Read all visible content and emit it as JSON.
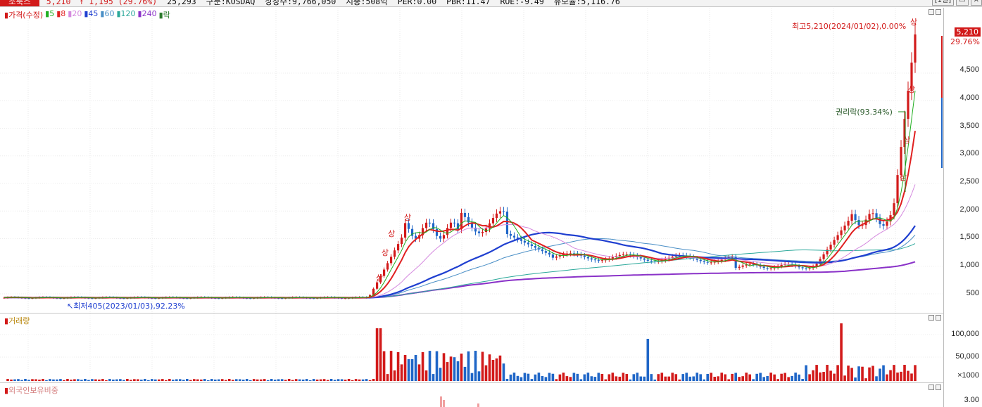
{
  "header": {
    "stock_name": "소룩스",
    "price": "5,210",
    "change": "↑ 1,195 (29.76%)",
    "volume": "25,293",
    "stats": [
      "구분:KOSDAQ",
      "상장수:9,766,050",
      "시총:508억",
      "PER:0.00",
      "PBR:11.47",
      "ROE:-9.49",
      "유보율:5,116.76"
    ],
    "period_button": "[1일]",
    "buttons": [
      "restore-icon",
      "close-icon"
    ]
  },
  "price_panel": {
    "legend": [
      {
        "label": "가격(수정)",
        "color": "#d21a1a"
      },
      {
        "label": "5",
        "color": "#1fae1f"
      },
      {
        "label": "8",
        "color": "#e02020"
      },
      {
        "label": "20",
        "color": "#d58adf"
      },
      {
        "label": "45",
        "color": "#1f3fd0"
      },
      {
        "label": "60",
        "color": "#4a8fc6"
      },
      {
        "label": "120",
        "color": "#2aa89a"
      },
      {
        "label": "240",
        "color": "#8a32c8"
      },
      {
        "label": "락",
        "color": "#2a7a2a"
      }
    ],
    "high_label": "최고5,210(2024/01/02),0.00%",
    "low_label": "최저405(2023/01/03),92.23%",
    "rights_label": "권리락(93.34%)",
    "limit_label": "상",
    "current_price": "5,210",
    "current_pct": "29.76%",
    "y_ticks": [
      "4,500",
      "4,000",
      "3,500",
      "3,000",
      "2,500",
      "2,000",
      "1,500",
      "1,000",
      "500"
    ]
  },
  "volume_panel": {
    "title": "거래량",
    "y_ticks": [
      "100,000",
      "50,000",
      "×1000"
    ]
  },
  "foreign_panel": {
    "title": "외국인보유비중",
    "y_ticks": [
      "3.00"
    ]
  },
  "colors": {
    "up": "#d21a1a",
    "down": "#1f66c7"
  }
}
